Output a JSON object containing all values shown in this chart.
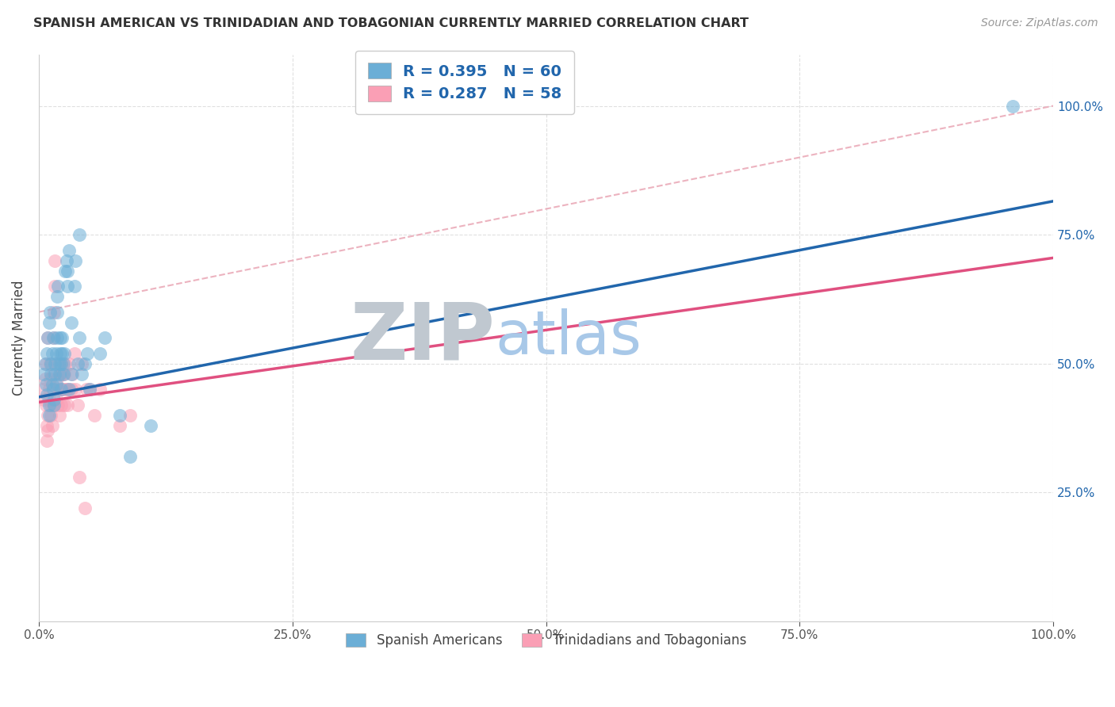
{
  "title": "SPANISH AMERICAN VS TRINIDADIAN AND TOBAGONIAN CURRENTLY MARRIED CORRELATION CHART",
  "source": "Source: ZipAtlas.com",
  "ylabel": "Currently Married",
  "xlabel": "",
  "xlim": [
    0,
    1.0
  ],
  "ylim": [
    0.0,
    1.1
  ],
  "blue_color": "#6baed6",
  "pink_color": "#fa9fb5",
  "blue_line_color": "#2166ac",
  "pink_line_color": "#e05080",
  "diagonal_color": "#e8a0b0",
  "R_blue": 0.395,
  "N_blue": 60,
  "R_pink": 0.287,
  "N_pink": 58,
  "legend_text_color": "#2166ac",
  "xtick_labels": [
    "0.0%",
    "25.0%",
    "50.0%",
    "75.0%",
    "100.0%"
  ],
  "xtick_vals": [
    0.0,
    0.25,
    0.5,
    0.75,
    1.0
  ],
  "ytick_vals": [
    0.25,
    0.5,
    0.75,
    1.0
  ],
  "blue_scatter": [
    [
      0.005,
      0.48
    ],
    [
      0.006,
      0.5
    ],
    [
      0.007,
      0.46
    ],
    [
      0.008,
      0.44
    ],
    [
      0.008,
      0.52
    ],
    [
      0.009,
      0.55
    ],
    [
      0.01,
      0.42
    ],
    [
      0.01,
      0.4
    ],
    [
      0.01,
      0.58
    ],
    [
      0.011,
      0.6
    ],
    [
      0.012,
      0.5
    ],
    [
      0.012,
      0.48
    ],
    [
      0.013,
      0.46
    ],
    [
      0.013,
      0.52
    ],
    [
      0.014,
      0.45
    ],
    [
      0.014,
      0.55
    ],
    [
      0.015,
      0.43
    ],
    [
      0.015,
      0.42
    ],
    [
      0.016,
      0.5
    ],
    [
      0.016,
      0.48
    ],
    [
      0.017,
      0.52
    ],
    [
      0.017,
      0.46
    ],
    [
      0.018,
      0.55
    ],
    [
      0.018,
      0.6
    ],
    [
      0.018,
      0.63
    ],
    [
      0.019,
      0.65
    ],
    [
      0.02,
      0.5
    ],
    [
      0.02,
      0.48
    ],
    [
      0.021,
      0.52
    ],
    [
      0.021,
      0.55
    ],
    [
      0.022,
      0.45
    ],
    [
      0.022,
      0.5
    ],
    [
      0.023,
      0.52
    ],
    [
      0.023,
      0.55
    ],
    [
      0.024,
      0.48
    ],
    [
      0.024,
      0.5
    ],
    [
      0.025,
      0.52
    ],
    [
      0.026,
      0.68
    ],
    [
      0.027,
      0.7
    ],
    [
      0.028,
      0.65
    ],
    [
      0.028,
      0.68
    ],
    [
      0.03,
      0.72
    ],
    [
      0.03,
      0.45
    ],
    [
      0.032,
      0.58
    ],
    [
      0.032,
      0.48
    ],
    [
      0.035,
      0.65
    ],
    [
      0.036,
      0.7
    ],
    [
      0.038,
      0.5
    ],
    [
      0.04,
      0.55
    ],
    [
      0.04,
      0.75
    ],
    [
      0.042,
      0.48
    ],
    [
      0.045,
      0.5
    ],
    [
      0.048,
      0.52
    ],
    [
      0.05,
      0.45
    ],
    [
      0.06,
      0.52
    ],
    [
      0.065,
      0.55
    ],
    [
      0.08,
      0.4
    ],
    [
      0.09,
      0.32
    ],
    [
      0.11,
      0.38
    ],
    [
      0.96,
      1.0
    ]
  ],
  "pink_scatter": [
    [
      0.004,
      0.45
    ],
    [
      0.005,
      0.43
    ],
    [
      0.006,
      0.47
    ],
    [
      0.007,
      0.42
    ],
    [
      0.007,
      0.5
    ],
    [
      0.008,
      0.38
    ],
    [
      0.008,
      0.35
    ],
    [
      0.009,
      0.37
    ],
    [
      0.009,
      0.4
    ],
    [
      0.009,
      0.55
    ],
    [
      0.01,
      0.45
    ],
    [
      0.01,
      0.43
    ],
    [
      0.011,
      0.47
    ],
    [
      0.011,
      0.5
    ],
    [
      0.012,
      0.42
    ],
    [
      0.012,
      0.4
    ],
    [
      0.013,
      0.38
    ],
    [
      0.013,
      0.45
    ],
    [
      0.014,
      0.48
    ],
    [
      0.014,
      0.42
    ],
    [
      0.015,
      0.55
    ],
    [
      0.015,
      0.6
    ],
    [
      0.016,
      0.65
    ],
    [
      0.016,
      0.7
    ],
    [
      0.017,
      0.45
    ],
    [
      0.017,
      0.43
    ],
    [
      0.018,
      0.47
    ],
    [
      0.018,
      0.5
    ],
    [
      0.019,
      0.42
    ],
    [
      0.02,
      0.4
    ],
    [
      0.02,
      0.45
    ],
    [
      0.021,
      0.48
    ],
    [
      0.022,
      0.42
    ],
    [
      0.022,
      0.5
    ],
    [
      0.023,
      0.45
    ],
    [
      0.023,
      0.48
    ],
    [
      0.024,
      0.45
    ],
    [
      0.025,
      0.42
    ],
    [
      0.025,
      0.48
    ],
    [
      0.026,
      0.5
    ],
    [
      0.027,
      0.45
    ],
    [
      0.028,
      0.42
    ],
    [
      0.028,
      0.45
    ],
    [
      0.03,
      0.5
    ],
    [
      0.032,
      0.45
    ],
    [
      0.033,
      0.48
    ],
    [
      0.035,
      0.52
    ],
    [
      0.036,
      0.45
    ],
    [
      0.038,
      0.42
    ],
    [
      0.04,
      0.28
    ],
    [
      0.042,
      0.5
    ],
    [
      0.045,
      0.22
    ],
    [
      0.047,
      0.45
    ],
    [
      0.05,
      0.45
    ],
    [
      0.055,
      0.4
    ],
    [
      0.06,
      0.45
    ],
    [
      0.08,
      0.38
    ],
    [
      0.09,
      0.4
    ]
  ],
  "blue_line_intercept": 0.435,
  "blue_line_slope": 0.38,
  "pink_line_intercept": 0.425,
  "pink_line_slope": 0.28,
  "diag_intercept": 0.6,
  "diag_slope": 0.4,
  "watermark_zip_color": "#c0c8d0",
  "watermark_atlas_color": "#a8c8e8",
  "background_color": "#ffffff",
  "grid_color": "#e0e0e0"
}
